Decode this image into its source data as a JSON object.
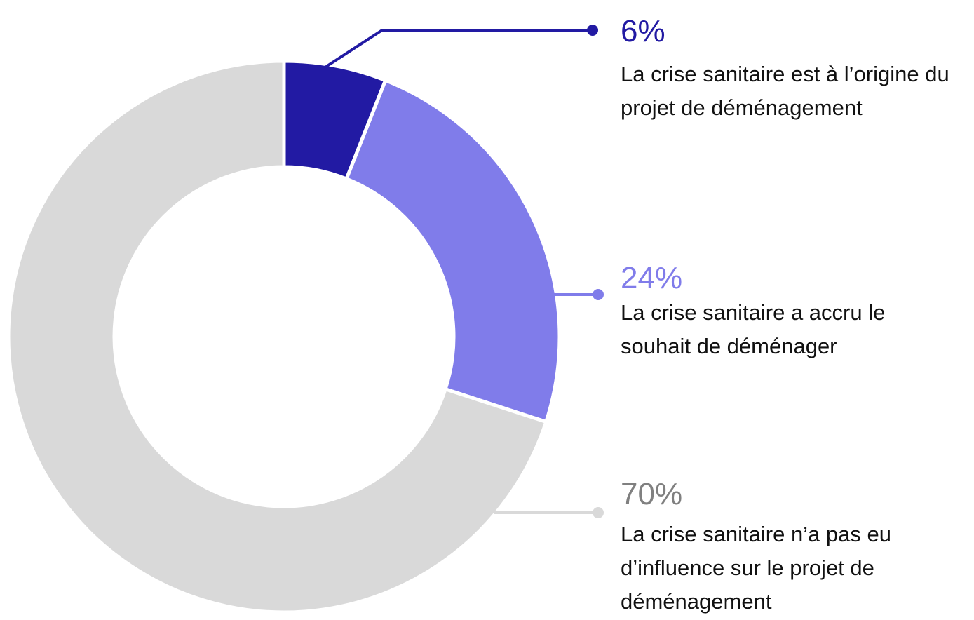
{
  "chart_data": {
    "type": "donut",
    "categories": [
      "La crise sanitaire est à l’origine du projet de déménagement",
      "La crise sanitaire a accru le souhait de déménager",
      "La crise sanitaire n’a pas eu d’influence sur le projet de déménagement"
    ],
    "values": [
      6,
      24,
      70
    ],
    "value_labels": [
      "6%",
      "24%",
      "70%"
    ],
    "colors": [
      "#221aa3",
      "#807cea",
      "#d9d9d9"
    ],
    "label_colors": [
      "#221aa3",
      "#807cea",
      "#808080"
    ]
  }
}
